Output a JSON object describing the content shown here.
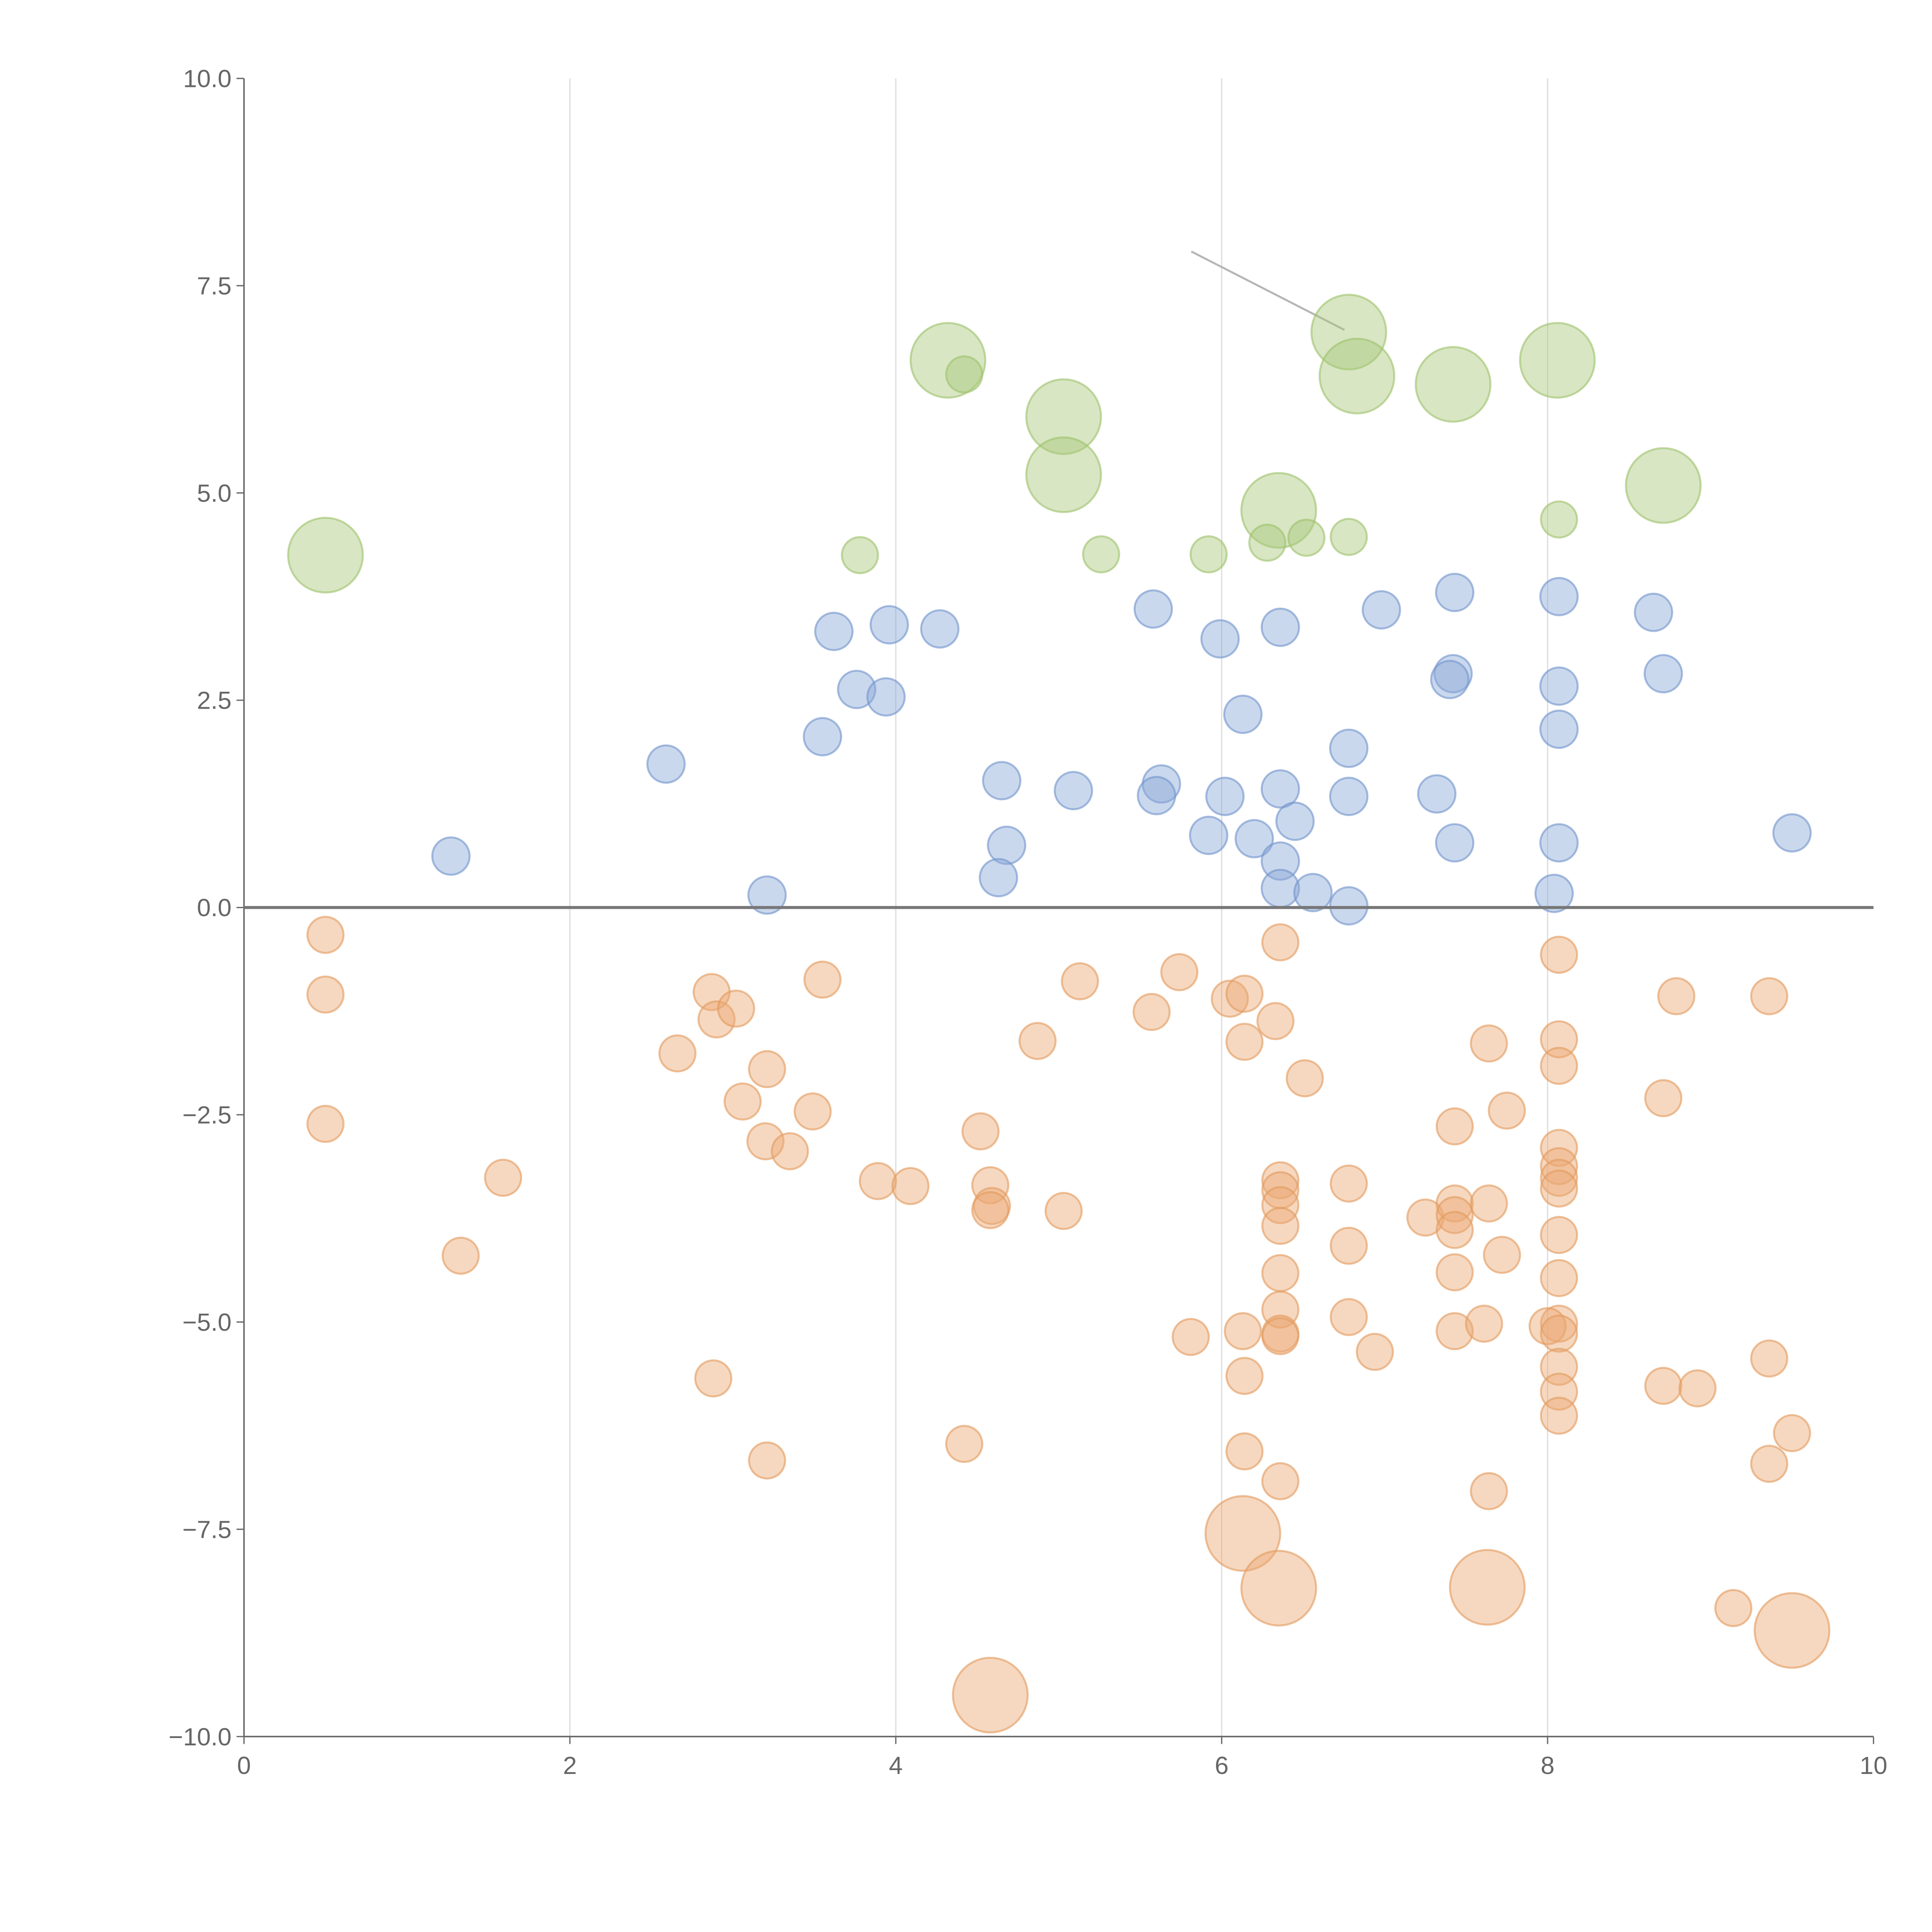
{
  "chart_data": {
    "type": "scatter",
    "title": "",
    "xlabel": "",
    "ylabel": "",
    "xlim": [
      0,
      10
    ],
    "ylim": [
      -10,
      10
    ],
    "grid": "vertical",
    "legend": "none",
    "x_ticks": [
      "0",
      "2",
      "4",
      "6",
      "8",
      "10"
    ],
    "x_tick_values": [
      0,
      2,
      4,
      6,
      8,
      10
    ],
    "y_ticks": [
      "10.0",
      "7.5",
      "5.0",
      "2.5",
      "0.0",
      "−2.5",
      "−5.0",
      "−7.5",
      "−10.0"
    ],
    "y_tick_values": [
      10,
      7.5,
      5,
      2.5,
      0,
      -2.5,
      -5,
      -7.5,
      -10
    ],
    "size_note": "s = relative bubble size (1 small, 2 large)",
    "series": [
      {
        "name": "green",
        "color": "#a8c87a",
        "stroke": "#9cc26a",
        "points": [
          [
            0.5,
            4.25,
            2
          ],
          [
            4.32,
            6.6,
            2
          ],
          [
            5.03,
            5.92,
            2
          ],
          [
            5.03,
            5.22,
            2
          ],
          [
            6.78,
            6.94,
            2
          ],
          [
            6.83,
            6.41,
            2
          ],
          [
            7.42,
            6.31,
            2
          ],
          [
            8.06,
            6.6,
            2
          ],
          [
            8.71,
            5.09,
            2
          ],
          [
            6.35,
            4.79,
            2
          ],
          [
            4.42,
            6.43,
            1
          ],
          [
            3.78,
            4.25,
            1
          ],
          [
            5.26,
            4.26,
            1
          ],
          [
            5.92,
            4.26,
            1
          ],
          [
            6.28,
            4.4,
            1
          ],
          [
            6.52,
            4.46,
            1
          ],
          [
            6.78,
            4.47,
            1
          ],
          [
            8.07,
            4.68,
            1
          ]
        ]
      },
      {
        "name": "blue",
        "color": "#89a9d8",
        "stroke": "#6f93cc",
        "points": [
          [
            1.27,
            0.62,
            1
          ],
          [
            2.59,
            1.73,
            1
          ],
          [
            3.21,
            0.15,
            1
          ],
          [
            3.55,
            2.06,
            1
          ],
          [
            3.62,
            3.33,
            1
          ],
          [
            3.76,
            2.63,
            1
          ],
          [
            3.94,
            2.54,
            1
          ],
          [
            3.96,
            3.41,
            1
          ],
          [
            4.27,
            3.36,
            1
          ],
          [
            4.65,
            1.53,
            1
          ],
          [
            4.68,
            0.75,
            1
          ],
          [
            4.63,
            0.36,
            1
          ],
          [
            5.09,
            1.41,
            1
          ],
          [
            5.58,
            3.6,
            1
          ],
          [
            5.63,
            1.49,
            1
          ],
          [
            5.6,
            1.35,
            1
          ],
          [
            5.99,
            3.24,
            1
          ],
          [
            6.02,
            1.34,
            1
          ],
          [
            5.92,
            0.87,
            1
          ],
          [
            6.13,
            2.33,
            1
          ],
          [
            6.2,
            0.83,
            1
          ],
          [
            6.36,
            3.38,
            1
          ],
          [
            6.36,
            1.43,
            1
          ],
          [
            6.45,
            1.04,
            1
          ],
          [
            6.36,
            0.56,
            1
          ],
          [
            6.36,
            0.23,
            1
          ],
          [
            6.56,
            0.18,
            1
          ],
          [
            6.78,
            1.92,
            1
          ],
          [
            6.78,
            1.34,
            1
          ],
          [
            6.78,
            0.02,
            1
          ],
          [
            6.98,
            3.59,
            1
          ],
          [
            7.32,
            1.37,
            1
          ],
          [
            7.43,
            3.8,
            1
          ],
          [
            7.42,
            2.82,
            1
          ],
          [
            7.4,
            2.75,
            1
          ],
          [
            7.43,
            0.78,
            1
          ],
          [
            8.07,
            3.75,
            1
          ],
          [
            8.07,
            2.67,
            1
          ],
          [
            8.07,
            2.15,
            1
          ],
          [
            8.07,
            0.78,
            1
          ],
          [
            8.04,
            0.17,
            1
          ],
          [
            8.65,
            3.56,
            1
          ],
          [
            8.71,
            2.82,
            1
          ],
          [
            9.5,
            0.9,
            1
          ]
        ]
      },
      {
        "name": "orange",
        "color": "#eaa974",
        "stroke": "#e39a5c",
        "points": [
          [
            0.5,
            -0.33,
            1
          ],
          [
            0.5,
            -1.05,
            1
          ],
          [
            0.5,
            -2.61,
            1
          ],
          [
            1.59,
            -3.26,
            1
          ],
          [
            1.33,
            -4.2,
            1
          ],
          [
            2.66,
            -1.76,
            1
          ],
          [
            2.87,
            -1.02,
            1
          ],
          [
            2.9,
            -1.35,
            1
          ],
          [
            3.02,
            -1.22,
            1
          ],
          [
            3.06,
            -2.34,
            1
          ],
          [
            3.21,
            -1.95,
            1
          ],
          [
            3.2,
            -2.82,
            1
          ],
          [
            3.35,
            -2.94,
            1
          ],
          [
            3.49,
            -2.46,
            1
          ],
          [
            3.55,
            -0.87,
            1
          ],
          [
            2.88,
            -5.68,
            1
          ],
          [
            3.21,
            -6.67,
            1
          ],
          [
            3.89,
            -3.3,
            1
          ],
          [
            4.09,
            -3.36,
            1
          ],
          [
            4.52,
            -2.7,
            1
          ],
          [
            4.58,
            -3.35,
            1
          ],
          [
            4.59,
            -3.6,
            1
          ],
          [
            4.58,
            -3.65,
            1
          ],
          [
            4.42,
            -6.47,
            1
          ],
          [
            4.87,
            -1.61,
            1
          ],
          [
            5.03,
            -3.66,
            1
          ],
          [
            5.13,
            -0.89,
            1
          ],
          [
            5.57,
            -1.26,
            1
          ],
          [
            5.74,
            -0.78,
            1
          ],
          [
            5.81,
            -5.18,
            1
          ],
          [
            6.05,
            -1.1,
            1
          ],
          [
            6.14,
            -1.04,
            1
          ],
          [
            6.14,
            -1.62,
            1
          ],
          [
            6.13,
            -5.11,
            1
          ],
          [
            6.14,
            -5.65,
            1
          ],
          [
            6.14,
            -6.56,
            1
          ],
          [
            6.36,
            -0.42,
            1
          ],
          [
            6.33,
            -1.37,
            1
          ],
          [
            6.36,
            -3.29,
            1
          ],
          [
            6.36,
            -3.41,
            1
          ],
          [
            6.36,
            -3.59,
            1
          ],
          [
            6.36,
            -3.84,
            1
          ],
          [
            6.36,
            -4.41,
            1
          ],
          [
            6.36,
            -4.85,
            1
          ],
          [
            6.36,
            -5.14,
            1
          ],
          [
            6.36,
            -5.17,
            1
          ],
          [
            6.36,
            -6.92,
            1
          ],
          [
            6.51,
            -2.06,
            1
          ],
          [
            6.78,
            -3.33,
            1
          ],
          [
            6.78,
            -4.08,
            1
          ],
          [
            6.78,
            -4.94,
            1
          ],
          [
            6.94,
            -5.36,
            1
          ],
          [
            7.25,
            -3.74,
            1
          ],
          [
            7.43,
            -2.64,
            1
          ],
          [
            7.43,
            -3.57,
            1
          ],
          [
            7.43,
            -3.71,
            1
          ],
          [
            7.43,
            -3.89,
            1
          ],
          [
            7.43,
            -4.4,
            1
          ],
          [
            7.43,
            -5.11,
            1
          ],
          [
            7.61,
            -5.02,
            1
          ],
          [
            7.64,
            -1.64,
            1
          ],
          [
            7.64,
            -3.57,
            1
          ],
          [
            7.72,
            -4.19,
            1
          ],
          [
            7.75,
            -2.45,
            1
          ],
          [
            7.64,
            -7.04,
            1
          ],
          [
            8.07,
            -0.57,
            1
          ],
          [
            8.07,
            -1.59,
            1
          ],
          [
            8.07,
            -1.91,
            1
          ],
          [
            8.07,
            -2.9,
            1
          ],
          [
            8.07,
            -3.12,
            1
          ],
          [
            8.07,
            -3.26,
            1
          ],
          [
            8.07,
            -3.39,
            1
          ],
          [
            8.07,
            -3.95,
            1
          ],
          [
            8.07,
            -4.47,
            1
          ],
          [
            8.07,
            -5.02,
            1
          ],
          [
            8.0,
            -5.05,
            1
          ],
          [
            8.07,
            -5.14,
            1
          ],
          [
            8.07,
            -5.54,
            1
          ],
          [
            8.07,
            -5.84,
            1
          ],
          [
            8.07,
            -6.13,
            1
          ],
          [
            8.71,
            -2.3,
            1
          ],
          [
            8.79,
            -1.07,
            1
          ],
          [
            8.71,
            -5.77,
            1
          ],
          [
            8.92,
            -5.8,
            1
          ],
          [
            9.36,
            -1.07,
            1
          ],
          [
            9.36,
            -5.44,
            1
          ],
          [
            9.36,
            -6.71,
            1
          ],
          [
            9.5,
            -6.34,
            1
          ],
          [
            9.14,
            -8.45,
            1
          ],
          [
            4.58,
            -9.5,
            2
          ],
          [
            6.13,
            -7.55,
            2
          ],
          [
            6.35,
            -8.21,
            2
          ],
          [
            7.63,
            -8.2,
            2
          ],
          [
            9.5,
            -8.72,
            2
          ]
        ]
      }
    ]
  }
}
